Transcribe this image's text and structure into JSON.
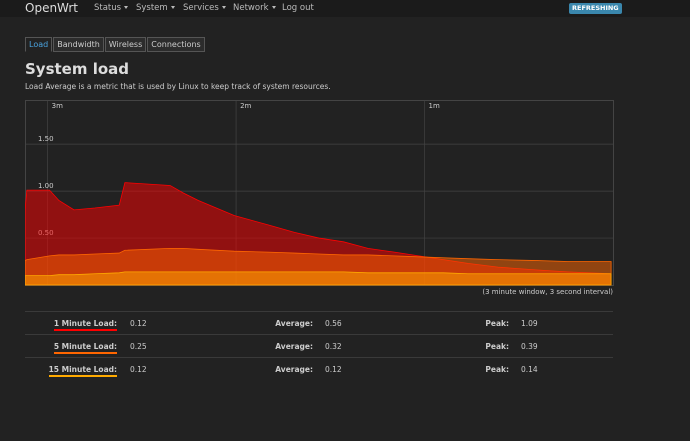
{
  "nav": {
    "brand": "OpenWrt",
    "items": [
      "Status",
      "System",
      "Services",
      "Network"
    ],
    "logout": "Log out",
    "badge": "REFRESHING"
  },
  "tabs": [
    "Load",
    "Bandwidth",
    "Wireless",
    "Connections"
  ],
  "heading": "System load",
  "description": "Load Average is a metric that is used by Linux to keep track of system resources.",
  "chart_data": {
    "type": "area",
    "x": [
      3.12,
      3.11,
      2.99,
      2.94,
      2.86,
      2.75,
      2.62,
      2.59,
      2.35,
      2.28,
      2.2,
      2.01,
      1.83,
      1.69,
      1.56,
      1.43,
      1.3,
      1.16,
      1.03,
      0.9,
      0.77,
      0.61,
      0.4,
      0.24,
      0.01
    ],
    "xlim": [
      3.12,
      0
    ],
    "xticks": [
      {
        "value": 3,
        "label": "3m"
      },
      {
        "value": 2,
        "label": "2m"
      },
      {
        "value": 1,
        "label": "1m"
      }
    ],
    "ylim": [
      0,
      1.97
    ],
    "yticks": [
      {
        "value": 0.5,
        "label": "0.50"
      },
      {
        "value": 1,
        "label": "1.00"
      },
      {
        "value": 1.5,
        "label": "1.50"
      }
    ],
    "grid": true,
    "series": [
      {
        "name": "1 Minute Load:",
        "color": "#ff0000",
        "values": [
          0.8,
          1.01,
          1.01,
          0.9,
          0.8,
          0.82,
          0.85,
          1.09,
          1.06,
          0.98,
          0.9,
          0.74,
          0.64,
          0.56,
          0.5,
          0.46,
          0.39,
          0.35,
          0.31,
          0.27,
          0.23,
          0.19,
          0.16,
          0.14,
          0.12
        ]
      },
      {
        "name": "5 Minute Load:",
        "color": "#ff6600",
        "values": [
          0.26,
          0.27,
          0.31,
          0.32,
          0.32,
          0.33,
          0.34,
          0.37,
          0.39,
          0.39,
          0.38,
          0.36,
          0.35,
          0.34,
          0.33,
          0.32,
          0.32,
          0.31,
          0.3,
          0.29,
          0.28,
          0.27,
          0.26,
          0.25,
          0.25
        ]
      },
      {
        "name": "15 Minute Load:",
        "color": "#ffaa00",
        "values": [
          0.1,
          0.1,
          0.1,
          0.11,
          0.11,
          0.12,
          0.13,
          0.14,
          0.14,
          0.14,
          0.14,
          0.14,
          0.14,
          0.14,
          0.14,
          0.14,
          0.13,
          0.13,
          0.13,
          0.13,
          0.12,
          0.12,
          0.12,
          0.12,
          0.12
        ]
      }
    ]
  },
  "caption": "(3 minute window, 3 second interval)",
  "stats_labels": {
    "average": "Average:",
    "peak": "Peak:"
  },
  "stats": [
    {
      "current": 0.12,
      "average": 0.56,
      "peak": 1.09
    },
    {
      "current": 0.25,
      "average": 0.32,
      "peak": 0.39
    },
    {
      "current": 0.12,
      "average": 0.12,
      "peak": 0.14
    }
  ]
}
